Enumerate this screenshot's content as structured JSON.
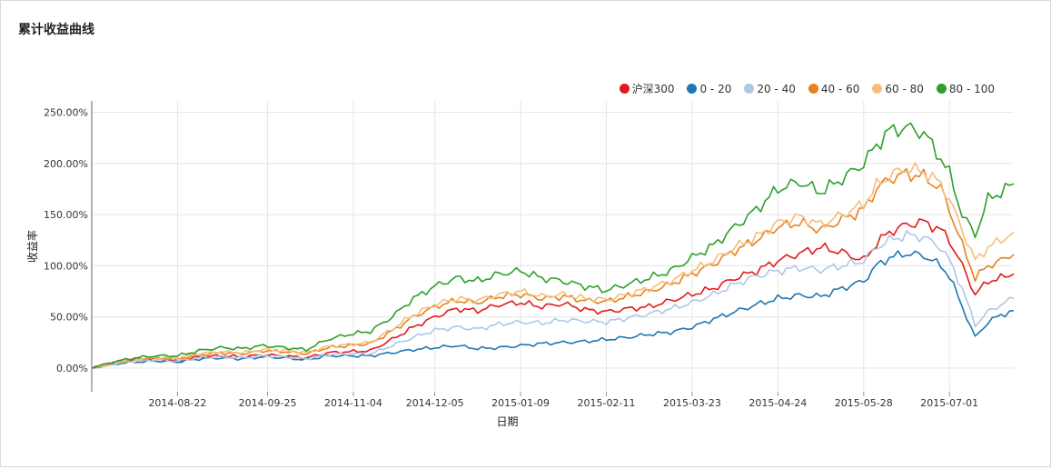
{
  "title": "累计收益曲线",
  "chart_data": {
    "type": "line",
    "title": "累计收益曲线",
    "xlabel": "日期",
    "ylabel": "收益率",
    "ylim": [
      -0.25,
      2.6
    ],
    "y_ticks": [
      "0.00%",
      "50.00%",
      "100.00%",
      "150.00%",
      "200.00%",
      "250.00%"
    ],
    "y_tick_values": [
      0,
      0.5,
      1.0,
      1.5,
      2.0,
      2.5
    ],
    "x_ticks": [
      "2014-08-22",
      "2014-09-25",
      "2014-11-04",
      "2014-12-05",
      "2015-01-09",
      "2015-02-11",
      "2015-03-23",
      "2015-04-24",
      "2015-05-28",
      "2015-07-01"
    ],
    "x_tick_index": [
      20,
      41,
      61,
      80,
      100,
      120,
      140,
      160,
      180,
      200
    ],
    "num_points": 216,
    "legend_position": "top-right",
    "grid": true,
    "x_index": [
      0,
      5,
      10,
      15,
      20,
      25,
      30,
      35,
      40,
      45,
      50,
      55,
      60,
      65,
      70,
      75,
      80,
      85,
      90,
      95,
      100,
      105,
      110,
      115,
      120,
      125,
      130,
      135,
      140,
      145,
      150,
      155,
      160,
      165,
      170,
      175,
      180,
      183,
      186,
      190,
      194,
      198,
      200,
      203,
      206,
      209,
      212,
      215
    ],
    "series": [
      {
        "name": "沪深300",
        "color": "#e31a1c",
        "values": [
          0.0,
          0.05,
          0.08,
          0.09,
          0.07,
          0.11,
          0.12,
          0.11,
          0.13,
          0.12,
          0.1,
          0.15,
          0.16,
          0.17,
          0.28,
          0.4,
          0.5,
          0.58,
          0.56,
          0.62,
          0.64,
          0.6,
          0.63,
          0.57,
          0.55,
          0.58,
          0.6,
          0.66,
          0.72,
          0.78,
          0.88,
          0.95,
          1.05,
          1.12,
          1.18,
          1.13,
          1.05,
          1.22,
          1.33,
          1.4,
          1.43,
          1.35,
          1.25,
          1.0,
          0.72,
          0.85,
          0.88,
          0.92
        ]
      },
      {
        "name": "0 - 20",
        "color": "#1f77b4",
        "values": [
          0.0,
          0.04,
          0.06,
          0.07,
          0.06,
          0.09,
          0.1,
          0.09,
          0.11,
          0.1,
          0.08,
          0.12,
          0.12,
          0.12,
          0.15,
          0.18,
          0.2,
          0.22,
          0.19,
          0.2,
          0.22,
          0.24,
          0.25,
          0.26,
          0.28,
          0.3,
          0.33,
          0.35,
          0.4,
          0.48,
          0.55,
          0.62,
          0.68,
          0.71,
          0.7,
          0.78,
          0.85,
          1.0,
          1.08,
          1.12,
          1.1,
          1.0,
          0.9,
          0.6,
          0.3,
          0.45,
          0.52,
          0.56
        ]
      },
      {
        "name": "20 - 40",
        "color": "#aec7e8",
        "values": [
          0.0,
          0.04,
          0.07,
          0.08,
          0.07,
          0.1,
          0.11,
          0.1,
          0.12,
          0.11,
          0.09,
          0.13,
          0.14,
          0.14,
          0.22,
          0.3,
          0.37,
          0.4,
          0.38,
          0.43,
          0.45,
          0.44,
          0.47,
          0.46,
          0.45,
          0.49,
          0.53,
          0.58,
          0.64,
          0.72,
          0.82,
          0.9,
          0.95,
          0.98,
          0.96,
          1.0,
          1.05,
          1.18,
          1.25,
          1.3,
          1.28,
          1.18,
          1.05,
          0.78,
          0.42,
          0.55,
          0.62,
          0.68
        ]
      },
      {
        "name": "40 - 60",
        "color": "#e6821e",
        "values": [
          0.0,
          0.05,
          0.09,
          0.1,
          0.09,
          0.13,
          0.15,
          0.14,
          0.17,
          0.16,
          0.14,
          0.2,
          0.22,
          0.24,
          0.36,
          0.5,
          0.6,
          0.66,
          0.64,
          0.7,
          0.72,
          0.68,
          0.7,
          0.66,
          0.65,
          0.7,
          0.75,
          0.82,
          0.92,
          1.02,
          1.15,
          1.25,
          1.38,
          1.42,
          1.35,
          1.45,
          1.55,
          1.75,
          1.85,
          1.9,
          1.87,
          1.75,
          1.55,
          1.2,
          0.88,
          1.0,
          1.05,
          1.11
        ]
      },
      {
        "name": "60 - 80",
        "color": "#f4be7a",
        "values": [
          0.0,
          0.05,
          0.09,
          0.1,
          0.1,
          0.14,
          0.16,
          0.15,
          0.18,
          0.17,
          0.15,
          0.21,
          0.23,
          0.25,
          0.38,
          0.52,
          0.62,
          0.68,
          0.66,
          0.72,
          0.75,
          0.7,
          0.72,
          0.68,
          0.67,
          0.72,
          0.78,
          0.85,
          0.95,
          1.05,
          1.18,
          1.28,
          1.42,
          1.48,
          1.4,
          1.5,
          1.6,
          1.78,
          1.88,
          1.95,
          1.92,
          1.8,
          1.65,
          1.35,
          1.05,
          1.18,
          1.25,
          1.33
        ]
      },
      {
        "name": "80 - 100",
        "color": "#2ca02c",
        "values": [
          0.0,
          0.06,
          0.1,
          0.12,
          0.12,
          0.17,
          0.2,
          0.19,
          0.22,
          0.2,
          0.18,
          0.28,
          0.33,
          0.36,
          0.5,
          0.68,
          0.8,
          0.88,
          0.85,
          0.92,
          0.95,
          0.88,
          0.85,
          0.8,
          0.76,
          0.82,
          0.88,
          0.95,
          1.08,
          1.2,
          1.38,
          1.55,
          1.75,
          1.82,
          1.72,
          1.85,
          2.0,
          2.18,
          2.32,
          2.35,
          2.3,
          2.05,
          1.9,
          1.5,
          1.3,
          1.65,
          1.72,
          1.8
        ]
      }
    ]
  }
}
